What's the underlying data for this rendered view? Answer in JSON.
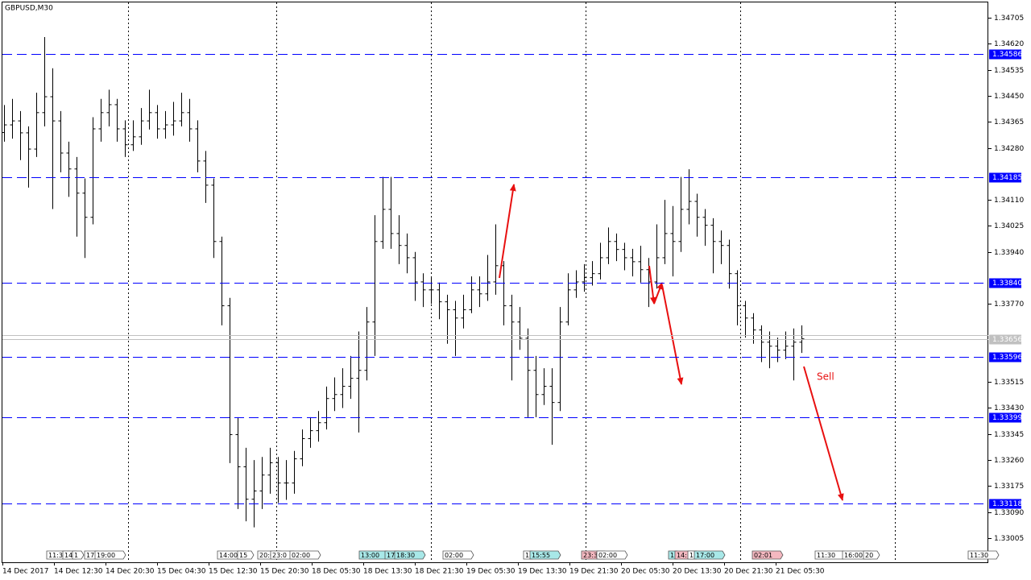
{
  "chart_data": {
    "type": "ohlc",
    "title": "GBPUSD,M30",
    "annotation": "Sell",
    "ylim": [
      1.32926,
      1.34763
    ],
    "yticks": [
      1.34705,
      {
        "value": 1.3462,
        "label": "1.34620"
      },
      1.34535,
      {
        "value": 1.3445,
        "label": "1.34450"
      },
      1.34365,
      {
        "value": 1.3428,
        "label": "1.34280"
      },
      {
        "value": 1.3411,
        "label": "1.34110"
      },
      1.34025,
      {
        "value": 1.3394,
        "label": "1.33940"
      },
      {
        "value": 1.3377,
        "label": "1.33770"
      },
      1.33515,
      {
        "value": 1.3343,
        "label": "1.33430"
      },
      1.33345,
      {
        "value": 1.3326,
        "label": "1.33260"
      },
      1.33175,
      {
        "value": 1.3309,
        "label": "1.33090"
      },
      1.33005
    ],
    "levels": [
      1.34586,
      1.34185,
      {
        "value": 1.3384,
        "label": "1.33840"
      },
      1.33596,
      1.33399,
      1.33118
    ],
    "current_price": 1.33656,
    "level_color": "#0000ff",
    "bar_color": "#000000",
    "xlabels": [
      "14 Dec 2017",
      "14 Dec 12:30",
      "14 Dec 20:30",
      "15 Dec 04:30",
      "15 Dec 12:30",
      "15 Dec 20:30",
      "18 Dec 05:30",
      "18 Dec 13:30",
      "18 Dec 21:30",
      "19 Dec 05:30",
      "19 Dec 13:30",
      "19 Dec 21:30",
      "20 Dec 05:30",
      "20 Dec 13:30",
      "20 Dec 21:30",
      "21 Dec 05:30"
    ],
    "events": [
      {
        "label": "11:3",
        "color": "#ffffff"
      },
      {
        "label": "14",
        "color": "#ffffff"
      },
      {
        "label": "1",
        "color": "#ffffff"
      },
      {
        "label": "17",
        "color": "#ffffff"
      },
      {
        "label": "19:00",
        "color": "#ffffff"
      },
      {
        "label": "14:00",
        "color": "#ffffff"
      },
      {
        "label": "15",
        "color": "#ffffff"
      },
      {
        "label": "20:0",
        "color": "#ffffff"
      },
      {
        "label": "23:0",
        "color": "#ffffff"
      },
      {
        "label": "02:00",
        "color": "#ffffff"
      },
      {
        "label": "13:00",
        "color": "#a8e8e8"
      },
      {
        "label": "17",
        "color": "#a8e8e8"
      },
      {
        "label": "18:30",
        "color": "#a8e8e8"
      },
      {
        "label": "02:00",
        "color": "#ffffff"
      },
      {
        "label": "1",
        "color": "#ffffff"
      },
      {
        "label": "15:55",
        "color": "#a8e8e8"
      },
      {
        "label": "23:3",
        "color": "#f4b8c0"
      },
      {
        "label": "02:00",
        "color": "#ffffff"
      },
      {
        "label": "1",
        "color": "#a8e8e8"
      },
      {
        "label": "14:",
        "color": "#f4b8c0"
      },
      {
        "label": "1",
        "color": "#ffffff"
      },
      {
        "label": "17:00",
        "color": "#a8e8e8"
      },
      {
        "label": "02:01",
        "color": "#f4b8c0"
      },
      {
        "label": "11:30",
        "color": "#ffffff"
      },
      {
        "label": "16:00",
        "color": "#ffffff"
      },
      {
        "label": "20",
        "color": "#ffffff"
      },
      {
        "label": "11:30",
        "color": "#ffffff"
      }
    ],
    "bars": [
      [
        1.3433,
        1.3442,
        1.343,
        1.34355
      ],
      [
        1.34355,
        1.3444,
        1.3431,
        1.34368
      ],
      [
        1.34368,
        1.344,
        1.3424,
        1.34329
      ],
      [
        1.34329,
        1.3435,
        1.3415,
        1.34276
      ],
      [
        1.34276,
        1.3446,
        1.3425,
        1.34395
      ],
      [
        1.34395,
        1.34642,
        1.3435,
        1.34447
      ],
      [
        1.34447,
        1.3454,
        1.3408,
        1.34368
      ],
      [
        1.34368,
        1.344,
        1.342,
        1.34263
      ],
      [
        1.34263,
        1.343,
        1.3412,
        1.34211
      ],
      [
        1.34211,
        1.3425,
        1.3399,
        1.34132
      ],
      [
        1.34132,
        1.3418,
        1.3392,
        1.34053
      ],
      [
        1.34053,
        1.3438,
        1.3403,
        1.34342
      ],
      [
        1.34342,
        1.3444,
        1.343,
        1.34395
      ],
      [
        1.34395,
        1.3447,
        1.3435,
        1.34421
      ],
      [
        1.34421,
        1.3444,
        1.343,
        1.34342
      ],
      [
        1.34342,
        1.3437,
        1.3425,
        1.3429
      ],
      [
        1.3429,
        1.3437,
        1.3427,
        1.34316
      ],
      [
        1.34316,
        1.3441,
        1.3429,
        1.34368
      ],
      [
        1.34368,
        1.3447,
        1.3434,
        1.34395
      ],
      [
        1.34395,
        1.3442,
        1.3431,
        1.34342
      ],
      [
        1.34342,
        1.344,
        1.3431,
        1.34355
      ],
      [
        1.34355,
        1.3443,
        1.3432,
        1.34368
      ],
      [
        1.34368,
        1.3446,
        1.3435,
        1.34395
      ],
      [
        1.34395,
        1.3444,
        1.343,
        1.34342
      ],
      [
        1.34342,
        1.3437,
        1.342,
        1.34237
      ],
      [
        1.34237,
        1.3427,
        1.341,
        1.34158
      ],
      [
        1.34158,
        1.3418,
        1.3392,
        1.33974
      ],
      [
        1.33974,
        1.3399,
        1.337,
        1.33764
      ],
      [
        1.33764,
        1.3379,
        1.3325,
        1.33343
      ],
      [
        1.33343,
        1.334,
        1.331,
        1.33238
      ],
      [
        1.33238,
        1.333,
        1.3306,
        1.33132
      ],
      [
        1.33132,
        1.3326,
        1.3304,
        1.33159
      ],
      [
        1.33159,
        1.3327,
        1.331,
        1.33211
      ],
      [
        1.33211,
        1.333,
        1.3315,
        1.33251
      ],
      [
        1.33251,
        1.3327,
        1.3312,
        1.33185
      ],
      [
        1.33185,
        1.3326,
        1.3313,
        1.33185
      ],
      [
        1.33185,
        1.3329,
        1.3315,
        1.33264
      ],
      [
        1.33264,
        1.3336,
        1.3324,
        1.3333
      ],
      [
        1.3333,
        1.334,
        1.333,
        1.33356
      ],
      [
        1.33356,
        1.3342,
        1.3332,
        1.33382
      ],
      [
        1.33382,
        1.335,
        1.3336,
        1.33461
      ],
      [
        1.33461,
        1.3353,
        1.3342,
        1.33474
      ],
      [
        1.33474,
        1.3356,
        1.3343,
        1.33501
      ],
      [
        1.33501,
        1.336,
        1.3346,
        1.33527
      ],
      [
        1.33527,
        1.3368,
        1.3335,
        1.33553
      ],
      [
        1.33553,
        1.3376,
        1.3352,
        1.33711
      ],
      [
        1.33711,
        1.3406,
        1.336,
        1.33974
      ],
      [
        1.33974,
        1.34185,
        1.3395,
        1.34079
      ],
      [
        1.34079,
        1.34185,
        1.3395,
        1.34
      ],
      [
        1.34,
        1.3406,
        1.339,
        1.33961
      ],
      [
        1.33961,
        1.34,
        1.3387,
        1.33921
      ],
      [
        1.33921,
        1.3394,
        1.3378,
        1.33842
      ],
      [
        1.33842,
        1.3387,
        1.3376,
        1.33816
      ],
      [
        1.33816,
        1.3386,
        1.3377,
        1.33816
      ],
      [
        1.33816,
        1.3384,
        1.3372,
        1.33777
      ],
      [
        1.33777,
        1.338,
        1.3364,
        1.33751
      ],
      [
        1.33751,
        1.3378,
        1.336,
        1.33724
      ],
      [
        1.33724,
        1.338,
        1.3369,
        1.33751
      ],
      [
        1.33751,
        1.3386,
        1.3374,
        1.33816
      ],
      [
        1.33816,
        1.3386,
        1.3376,
        1.33803
      ],
      [
        1.33803,
        1.3393,
        1.3378,
        1.33842
      ],
      [
        1.33842,
        1.3403,
        1.338,
        1.33895
      ],
      [
        1.33895,
        1.3391,
        1.337,
        1.33764
      ],
      [
        1.33764,
        1.338,
        1.3352,
        1.33711
      ],
      [
        1.33711,
        1.3376,
        1.3362,
        1.33658
      ],
      [
        1.33658,
        1.3369,
        1.334,
        1.33553
      ],
      [
        1.33553,
        1.336,
        1.334,
        1.33474
      ],
      [
        1.33474,
        1.3356,
        1.3344,
        1.33501
      ],
      [
        1.33501,
        1.3356,
        1.3331,
        1.33448
      ],
      [
        1.33448,
        1.3376,
        1.3342,
        1.33711
      ],
      [
        1.33711,
        1.3387,
        1.337,
        1.33816
      ],
      [
        1.33816,
        1.3388,
        1.3379,
        1.33842
      ],
      [
        1.33842,
        1.339,
        1.3381,
        1.33856
      ],
      [
        1.33856,
        1.3391,
        1.3383,
        1.33869
      ],
      [
        1.33869,
        1.3397,
        1.3385,
        1.33921
      ],
      [
        1.33921,
        1.3402,
        1.339,
        1.33974
      ],
      [
        1.33974,
        1.34,
        1.3391,
        1.33948
      ],
      [
        1.33948,
        1.3397,
        1.3388,
        1.33921
      ],
      [
        1.33921,
        1.3395,
        1.3386,
        1.33908
      ],
      [
        1.33908,
        1.3396,
        1.3384,
        1.33882
      ],
      [
        1.33882,
        1.3392,
        1.3376,
        1.33842
      ],
      [
        1.33842,
        1.3403,
        1.3382,
        1.33921
      ],
      [
        1.33921,
        1.3411,
        1.339,
        1.34
      ],
      [
        1.34,
        1.3409,
        1.3386,
        1.33974
      ],
      [
        1.33974,
        1.34185,
        1.3394,
        1.34079
      ],
      [
        1.34079,
        1.3421,
        1.3403,
        1.34105
      ],
      [
        1.34105,
        1.3413,
        1.3399,
        1.34053
      ],
      [
        1.34053,
        1.3408,
        1.3396,
        1.34027
      ],
      [
        1.34027,
        1.3405,
        1.3387,
        1.33974
      ],
      [
        1.33974,
        1.3401,
        1.339,
        1.33961
      ],
      [
        1.33961,
        1.3398,
        1.3382,
        1.33869
      ],
      [
        1.33869,
        1.3388,
        1.337,
        1.33764
      ],
      [
        1.33764,
        1.3378,
        1.3366,
        1.33724
      ],
      [
        1.33724,
        1.3374,
        1.3364,
        1.33685
      ],
      [
        1.33685,
        1.337,
        1.3358,
        1.33645
      ],
      [
        1.33645,
        1.3368,
        1.3356,
        1.33632
      ],
      [
        1.33632,
        1.3366,
        1.3358,
        1.33619
      ],
      [
        1.33619,
        1.3368,
        1.3359,
        1.33632
      ],
      [
        1.33632,
        1.3369,
        1.3352,
        1.33645
      ],
      [
        1.33645,
        1.337,
        1.3361,
        1.33656
      ]
    ]
  }
}
